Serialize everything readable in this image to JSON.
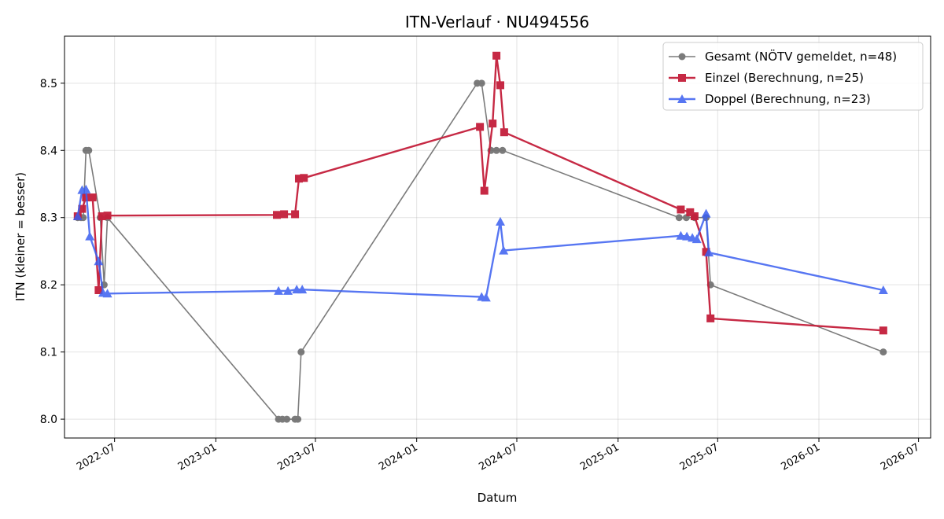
{
  "chart_data": {
    "type": "line",
    "title": "ITN-Verlauf · NU494556",
    "xlabel": "Datum",
    "ylabel": "ITN  (kleiner = besser)",
    "x_is_date": true,
    "xlim": [
      "2022-04-01",
      "2026-07-23"
    ],
    "ylim": [
      7.972,
      8.57
    ],
    "grid": true,
    "legend_position": "top-right",
    "x_ticks": [
      "2022-07-01",
      "2023-01-01",
      "2023-07-01",
      "2024-01-01",
      "2024-07-01",
      "2025-01-01",
      "2025-07-01",
      "2026-01-01",
      "2026-07-01"
    ],
    "x_tick_labels": [
      "2022-07",
      "2023-01",
      "2023-07",
      "2024-01",
      "2024-07",
      "2025-01",
      "2025-07",
      "2026-01",
      "2026-07"
    ],
    "y_ticks": [
      8.0,
      8.1,
      8.2,
      8.3,
      8.4,
      8.5
    ],
    "y_tick_labels": [
      "8.0",
      "8.1",
      "8.2",
      "8.3",
      "8.4",
      "8.5"
    ],
    "series": [
      {
        "name": "Gesamt (NÖTV gemeldet, n=48)",
        "color": "#444444",
        "marker": "circle",
        "line_width": 1.6,
        "opacity": 0.7,
        "points": [
          [
            "2022-04-25",
            8.3
          ],
          [
            "2022-05-01",
            8.3
          ],
          [
            "2022-05-05",
            8.3
          ],
          [
            "2022-05-10",
            8.4
          ],
          [
            "2022-05-15",
            8.4
          ],
          [
            "2022-06-05",
            8.3
          ],
          [
            "2022-06-12",
            8.2
          ],
          [
            "2022-06-18",
            8.3
          ],
          [
            "2023-04-25",
            8.0
          ],
          [
            "2023-05-02",
            8.0
          ],
          [
            "2023-05-10",
            8.0
          ],
          [
            "2023-05-25",
            8.0
          ],
          [
            "2023-05-30",
            8.0
          ],
          [
            "2023-06-05",
            8.1
          ],
          [
            "2024-04-20",
            8.5
          ],
          [
            "2024-04-28",
            8.5
          ],
          [
            "2024-05-15",
            8.4
          ],
          [
            "2024-05-25",
            8.4
          ],
          [
            "2024-06-05",
            8.4
          ],
          [
            "2025-04-22",
            8.3
          ],
          [
            "2025-05-05",
            8.3
          ],
          [
            "2025-05-20",
            8.3
          ],
          [
            "2025-06-10",
            8.3
          ],
          [
            "2025-06-18",
            8.2
          ],
          [
            "2026-04-28",
            8.1
          ]
        ]
      },
      {
        "name": "Einzel (Berechnung, n=25)",
        "color": "#c41e3a",
        "marker": "square",
        "line_width": 2.4,
        "opacity": 0.95,
        "points": [
          [
            "2022-04-25",
            8.302
          ],
          [
            "2022-05-03",
            8.313
          ],
          [
            "2022-05-10",
            8.33
          ],
          [
            "2022-05-22",
            8.33
          ],
          [
            "2022-06-02",
            8.192
          ],
          [
            "2022-06-08",
            8.302
          ],
          [
            "2022-06-18",
            8.303
          ],
          [
            "2023-04-22",
            8.304
          ],
          [
            "2023-05-05",
            8.305
          ],
          [
            "2023-05-25",
            8.305
          ],
          [
            "2023-06-01",
            8.358
          ],
          [
            "2023-06-10",
            8.359
          ],
          [
            "2024-04-25",
            8.435
          ],
          [
            "2024-05-03",
            8.34
          ],
          [
            "2024-05-18",
            8.44
          ],
          [
            "2024-05-25",
            8.541
          ],
          [
            "2024-06-01",
            8.497
          ],
          [
            "2024-06-08",
            8.427
          ],
          [
            "2025-04-25",
            8.312
          ],
          [
            "2025-05-12",
            8.308
          ],
          [
            "2025-05-20",
            8.302
          ],
          [
            "2025-06-10",
            8.249
          ],
          [
            "2025-06-18",
            8.15
          ],
          [
            "2026-04-28",
            8.132
          ]
        ]
      },
      {
        "name": "Doppel (Berechnung, n=23)",
        "color": "#3a5ff0",
        "marker": "triangle",
        "line_width": 2.4,
        "opacity": 0.85,
        "points": [
          [
            "2022-04-25",
            8.302
          ],
          [
            "2022-05-03",
            8.341
          ],
          [
            "2022-05-10",
            8.342
          ],
          [
            "2022-05-17",
            8.272
          ],
          [
            "2022-06-02",
            8.235
          ],
          [
            "2022-06-10",
            8.188
          ],
          [
            "2022-06-18",
            8.187
          ],
          [
            "2023-04-25",
            8.191
          ],
          [
            "2023-05-12",
            8.191
          ],
          [
            "2023-05-28",
            8.193
          ],
          [
            "2023-06-07",
            8.193
          ],
          [
            "2024-04-28",
            8.182
          ],
          [
            "2024-05-06",
            8.181
          ],
          [
            "2024-06-01",
            8.294
          ],
          [
            "2024-06-07",
            8.251
          ],
          [
            "2025-04-25",
            8.273
          ],
          [
            "2025-05-06",
            8.272
          ],
          [
            "2025-05-16",
            8.27
          ],
          [
            "2025-05-24",
            8.268
          ],
          [
            "2025-06-10",
            8.306
          ],
          [
            "2025-06-15",
            8.248
          ],
          [
            "2026-04-28",
            8.192
          ]
        ]
      }
    ]
  }
}
